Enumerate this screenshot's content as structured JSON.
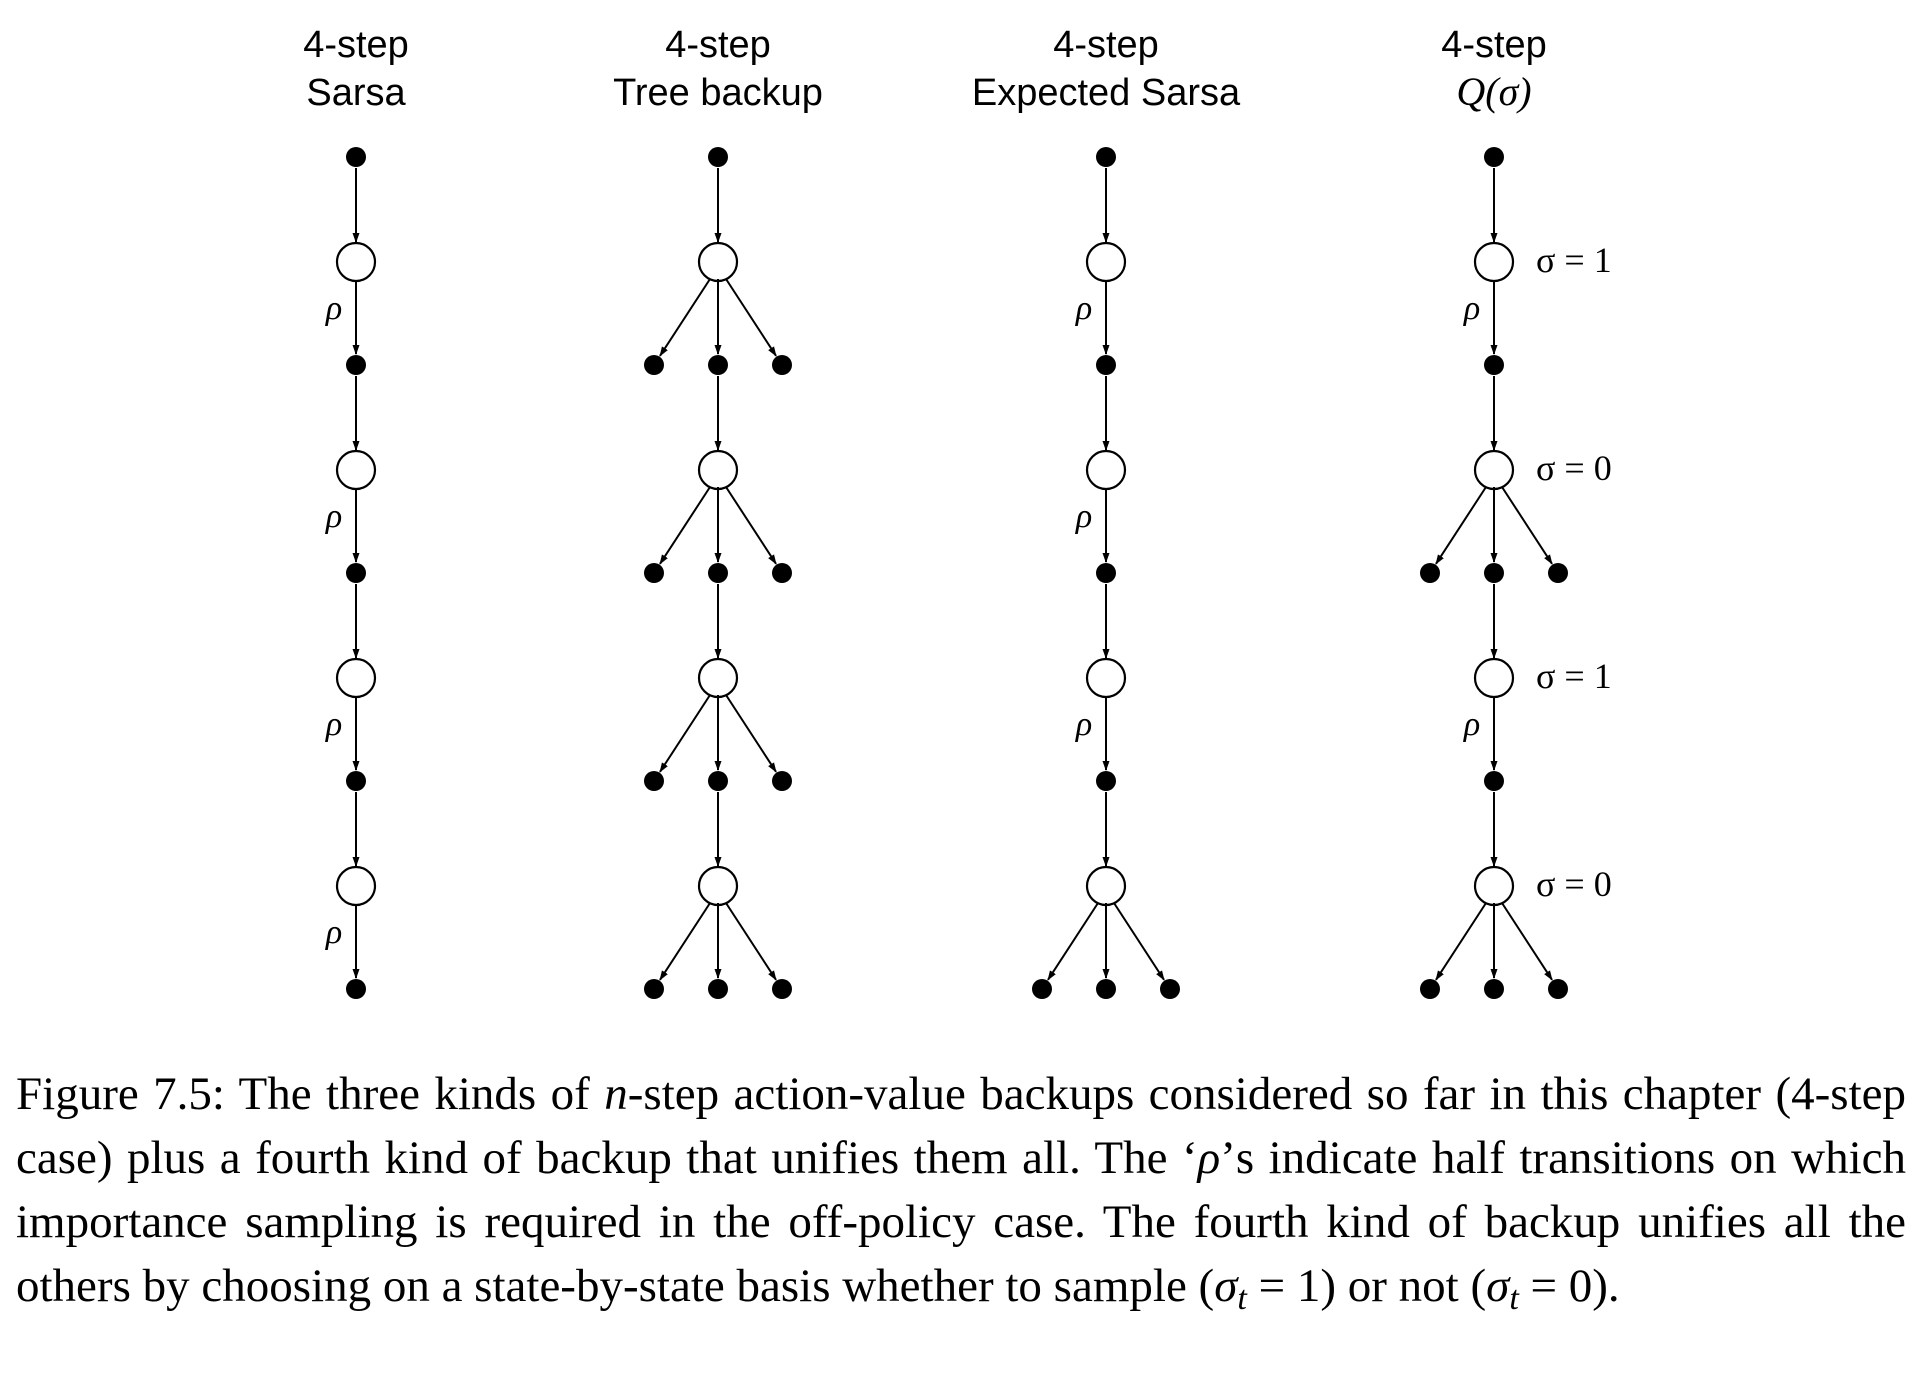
{
  "columns": [
    {
      "line1": "4-step",
      "line2": "Sarsa",
      "line2_math": false
    },
    {
      "line1": "4-step",
      "line2": "Tree backup",
      "line2_math": false
    },
    {
      "line1": "4-step",
      "line2": "Expected Sarsa",
      "line2_math": false
    },
    {
      "line1": "4-step",
      "line2": "Q(σ)",
      "line2_math": true
    }
  ],
  "rho_symbol": "ρ",
  "sigma_labels": [
    "σ = 1",
    "σ = 0",
    "σ = 1",
    "σ = 0"
  ],
  "diagrams": [
    {
      "name": "sarsa",
      "steps": [
        "sample",
        "sample",
        "sample",
        "sample"
      ]
    },
    {
      "name": "tree-backup",
      "steps": [
        "expect",
        "expect",
        "expect",
        "expect"
      ]
    },
    {
      "name": "expected-sarsa",
      "steps": [
        "sample",
        "sample",
        "sample",
        "expect"
      ]
    },
    {
      "name": "q-sigma",
      "steps": [
        "sample",
        "expect",
        "sample",
        "expect"
      ]
    }
  ],
  "caption": {
    "figure_label": "Figure 7.5:",
    "text_1": "The three kinds of",
    "n_symbol": "n",
    "text_2": "-step action-value backups considered so far in this chapter (4-step case) plus a fourth kind of backup that unifies them all. The ‘",
    "rho": "ρ",
    "text_3": "’s indicate half transitions on which importance sampling is required in the off-policy case. The fourth kind of backup unifies all the others by choosing on a state-by-state basis whether to sample (",
    "sigma_1": "σ",
    "sub_1": "t",
    "eq_1": " = 1) or not (",
    "sigma_2": "σ",
    "sub_2": "t",
    "eq_2": " = 0)."
  }
}
